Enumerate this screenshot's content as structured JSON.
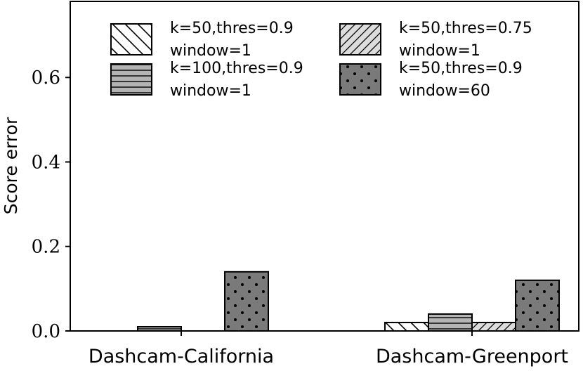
{
  "chart_data": {
    "type": "bar",
    "ylabel": "Score error",
    "xlabel": "",
    "ylim": [
      0,
      0.78
    ],
    "yticks": [
      0.0,
      0.2,
      0.4,
      0.6
    ],
    "ytick_labels": [
      "0.0",
      "0.2",
      "0.4",
      "0.6"
    ],
    "categories": [
      "Dashcam-California",
      "Dashcam-Greenport"
    ],
    "grid": false,
    "legend_position": "top",
    "series": [
      {
        "name_line1": "k=50,thres=0.9",
        "name_line2": "window=1",
        "pattern": "backslash-hatch",
        "fill": "#ffffff",
        "values": [
          0.0,
          0.02
        ]
      },
      {
        "name_line1": "k=100,thres=0.9",
        "name_line2": "window=1",
        "pattern": "horizontal-hatch",
        "fill": "#b4b4b4",
        "values": [
          0.01,
          0.04
        ]
      },
      {
        "name_line1": "k=50,thres=0.75",
        "name_line2": "window=1",
        "pattern": "slash-hatch",
        "fill": "#dcdcdc",
        "values": [
          0.0,
          0.02
        ]
      },
      {
        "name_line1": "k=50,thres=0.9",
        "name_line2": "window=60",
        "pattern": "dots",
        "fill": "#7a7a7a",
        "values": [
          0.14,
          0.12
        ]
      }
    ]
  }
}
